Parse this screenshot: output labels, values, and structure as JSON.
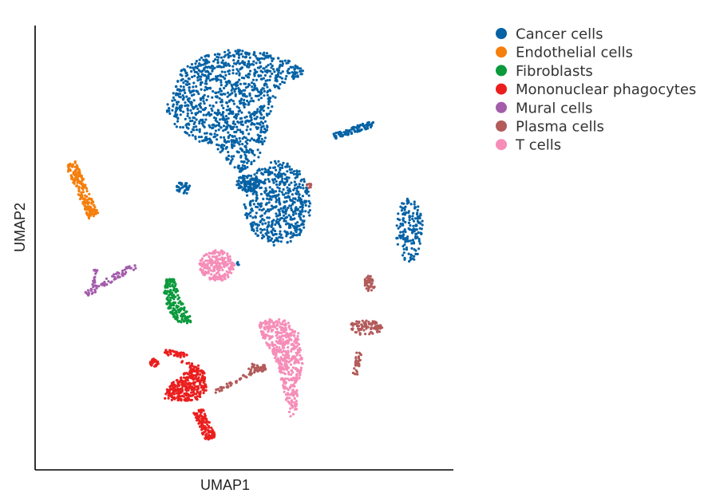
{
  "chart_data": {
    "type": "scatter",
    "xlabel": "UMAP1",
    "ylabel": "UMAP2",
    "xlim": [
      0,
      10
    ],
    "ylim": [
      0,
      10
    ],
    "grid": false,
    "legend_position": "top-right outside",
    "series": [
      {
        "name": "Cancer cells",
        "color": "#0562A5",
        "clusters": [
          {
            "shape": "poly",
            "n": 1100,
            "poly": [
              [
                3.1,
                8.1
              ],
              [
                3.5,
                9.0
              ],
              [
                4.1,
                9.35
              ],
              [
                4.5,
                9.45
              ],
              [
                5.0,
                9.45
              ],
              [
                5.5,
                9.4
              ],
              [
                6.0,
                9.25
              ],
              [
                6.5,
                8.95
              ],
              [
                6.2,
                8.8
              ],
              [
                5.9,
                8.6
              ],
              [
                5.7,
                8.3
              ],
              [
                5.6,
                7.9
              ],
              [
                5.5,
                7.4
              ],
              [
                5.3,
                6.9
              ],
              [
                4.9,
                6.7
              ],
              [
                4.4,
                7.1
              ],
              [
                3.9,
                7.4
              ],
              [
                3.4,
                7.7
              ]
            ]
          },
          {
            "shape": "ellipse",
            "n": 550,
            "cx": 5.8,
            "cy": 6.0,
            "rx": 0.8,
            "ry": 0.95
          },
          {
            "shape": "ellipse",
            "n": 90,
            "cx": 5.1,
            "cy": 6.45,
            "rx": 0.28,
            "ry": 0.2
          },
          {
            "shape": "line",
            "n": 90,
            "x1": 7.15,
            "y1": 7.5,
            "x2": 8.1,
            "y2": 7.8,
            "w": 0.07
          },
          {
            "shape": "ellipse",
            "n": 160,
            "cx": 8.95,
            "cy": 5.4,
            "rx": 0.32,
            "ry": 0.72
          },
          {
            "shape": "ellipse",
            "n": 40,
            "cx": 3.55,
            "cy": 6.35,
            "rx": 0.17,
            "ry": 0.14
          },
          {
            "shape": "ellipse",
            "n": 4,
            "cx": 4.85,
            "cy": 4.65,
            "rx": 0.03,
            "ry": 0.05
          }
        ]
      },
      {
        "name": "Endothelial cells",
        "color": "#F57F0D",
        "clusters": [
          {
            "shape": "line",
            "n": 190,
            "x1": 0.85,
            "y1": 6.9,
            "x2": 1.4,
            "y2": 5.7,
            "w": 0.13
          }
        ]
      },
      {
        "name": "Fibroblasts",
        "color": "#0A9A3C",
        "clusters": [
          {
            "shape": "poly",
            "n": 170,
            "poly": [
              [
                3.15,
                4.3
              ],
              [
                3.35,
                4.3
              ],
              [
                3.45,
                3.9
              ],
              [
                3.6,
                3.6
              ],
              [
                3.8,
                3.35
              ],
              [
                3.6,
                3.28
              ],
              [
                3.35,
                3.35
              ],
              [
                3.15,
                3.7
              ],
              [
                3.05,
                4.0
              ]
            ]
          }
        ]
      },
      {
        "name": "Mononuclear phagocytes",
        "color": "#EB1E1E",
        "clusters": [
          {
            "shape": "poly",
            "n": 320,
            "poly": [
              [
                3.05,
                1.6
              ],
              [
                3.45,
                1.55
              ],
              [
                3.85,
                1.55
              ],
              [
                4.1,
                1.8
              ],
              [
                4.05,
                2.2
              ],
              [
                3.85,
                2.35
              ],
              [
                3.6,
                2.2
              ],
              [
                3.2,
                1.9
              ]
            ]
          },
          {
            "shape": "line",
            "n": 120,
            "x1": 3.9,
            "y1": 1.35,
            "x2": 4.2,
            "y2": 0.7,
            "w": 0.13
          },
          {
            "shape": "line",
            "n": 45,
            "x1": 3.1,
            "y1": 2.65,
            "x2": 3.7,
            "y2": 2.55,
            "w": 0.06
          },
          {
            "shape": "ellipse",
            "n": 25,
            "cx": 2.85,
            "cy": 2.4,
            "rx": 0.1,
            "ry": 0.1
          },
          {
            "shape": "line",
            "n": 15,
            "x1": 3.5,
            "y1": 2.4,
            "x2": 3.95,
            "y2": 2.3,
            "w": 0.05
          }
        ]
      },
      {
        "name": "Mural cells",
        "color": "#A45DAB",
        "clusters": [
          {
            "shape": "line",
            "n": 70,
            "x1": 1.2,
            "y1": 3.95,
            "x2": 2.4,
            "y2": 4.6,
            "w": 0.07
          },
          {
            "shape": "line",
            "n": 20,
            "x1": 1.4,
            "y1": 4.05,
            "x2": 1.45,
            "y2": 4.5,
            "w": 0.04
          }
        ]
      },
      {
        "name": "Plasma cells",
        "color": "#B35A5A",
        "clusters": [
          {
            "shape": "line",
            "n": 50,
            "x1": 4.3,
            "y1": 1.75,
            "x2": 5.5,
            "y2": 2.35,
            "w": 0.04
          },
          {
            "shape": "ellipse",
            "n": 30,
            "cx": 5.3,
            "cy": 2.3,
            "rx": 0.25,
            "ry": 0.1
          },
          {
            "shape": "ellipse",
            "n": 90,
            "cx": 7.9,
            "cy": 3.2,
            "rx": 0.4,
            "ry": 0.17
          },
          {
            "shape": "ellipse",
            "n": 45,
            "cx": 8.0,
            "cy": 4.2,
            "rx": 0.13,
            "ry": 0.18
          },
          {
            "shape": "line",
            "n": 35,
            "x1": 7.65,
            "y1": 2.15,
            "x2": 7.75,
            "y2": 2.65,
            "w": 0.06
          },
          {
            "shape": "ellipse",
            "n": 8,
            "cx": 6.55,
            "cy": 6.4,
            "rx": 0.06,
            "ry": 0.05
          }
        ]
      },
      {
        "name": "T cells",
        "color": "#F68DB8",
        "clusters": [
          {
            "shape": "ellipse",
            "n": 230,
            "cx": 4.35,
            "cy": 4.6,
            "rx": 0.42,
            "ry": 0.35
          },
          {
            "shape": "poly",
            "n": 460,
            "poly": [
              [
                5.35,
                3.3
              ],
              [
                5.6,
                3.4
              ],
              [
                5.95,
                3.4
              ],
              [
                6.3,
                3.1
              ],
              [
                6.4,
                2.4
              ],
              [
                6.3,
                1.9
              ],
              [
                6.25,
                1.3
              ],
              [
                6.1,
                1.2
              ],
              [
                5.95,
                1.7
              ],
              [
                5.85,
                2.2
              ],
              [
                5.7,
                2.6
              ],
              [
                5.45,
                2.9
              ]
            ]
          }
        ]
      }
    ]
  }
}
